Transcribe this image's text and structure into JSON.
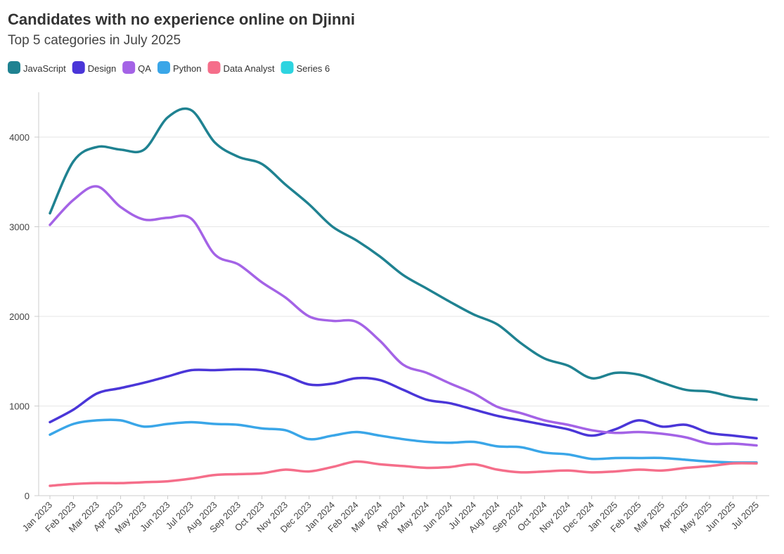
{
  "chart_data": {
    "type": "line",
    "title": "Candidates with no experience online on Djinni",
    "subtitle": "Top 5 categories in July 2025",
    "x": [
      "Jan 2023",
      "Feb 2023",
      "Mar 2023",
      "Apr 2023",
      "May 2023",
      "Jun 2023",
      "Jul 2023",
      "Aug 2023",
      "Sep 2023",
      "Oct 2023",
      "Nov 2023",
      "Dec 2023",
      "Jan 2024",
      "Feb 2024",
      "Mar 2024",
      "Apr 2024",
      "May 2024",
      "Jun 2024",
      "Jul 2024",
      "Aug 2024",
      "Sep 2024",
      "Oct 2024",
      "Nov 2024",
      "Dec 2024",
      "Jan 2025",
      "Feb 2025",
      "Mar 2025",
      "Apr 2025",
      "May 2025",
      "Jun 2025",
      "Jul 2025"
    ],
    "series": [
      {
        "name": "JavaScript",
        "color": "#1f8291",
        "values": [
          3150,
          3730,
          3890,
          3860,
          3860,
          4220,
          4300,
          3940,
          3780,
          3700,
          3470,
          3250,
          3000,
          2850,
          2670,
          2460,
          2310,
          2160,
          2020,
          1910,
          1700,
          1530,
          1450,
          1310,
          1370,
          1350,
          1260,
          1180,
          1160,
          1100,
          1070
        ]
      },
      {
        "name": "Design",
        "color": "#4a36d8",
        "values": [
          820,
          960,
          1140,
          1200,
          1260,
          1330,
          1400,
          1400,
          1410,
          1400,
          1340,
          1240,
          1250,
          1310,
          1290,
          1180,
          1070,
          1030,
          960,
          890,
          840,
          790,
          740,
          670,
          740,
          840,
          770,
          790,
          700,
          670,
          640
        ]
      },
      {
        "name": "QA",
        "color": "#a463e6",
        "values": [
          3020,
          3300,
          3450,
          3220,
          3080,
          3100,
          3090,
          2690,
          2580,
          2380,
          2210,
          2000,
          1950,
          1940,
          1730,
          1460,
          1370,
          1250,
          1140,
          990,
          920,
          840,
          790,
          730,
          700,
          710,
          690,
          650,
          580,
          580,
          560
        ]
      },
      {
        "name": "Python",
        "color": "#3aa6e8",
        "values": [
          680,
          800,
          840,
          840,
          770,
          800,
          820,
          800,
          790,
          750,
          730,
          630,
          670,
          710,
          670,
          630,
          600,
          590,
          600,
          550,
          540,
          480,
          460,
          410,
          420,
          420,
          420,
          400,
          380,
          370,
          370
        ]
      },
      {
        "name": "Data Analyst",
        "color": "#f56e8a",
        "values": [
          110,
          130,
          140,
          140,
          150,
          160,
          190,
          230,
          240,
          250,
          290,
          270,
          320,
          380,
          350,
          330,
          310,
          320,
          350,
          290,
          260,
          270,
          280,
          260,
          270,
          290,
          280,
          310,
          330,
          360,
          360
        ]
      },
      {
        "name": "Series 6",
        "color": "#2dd4e0",
        "values": [
          null,
          null,
          null,
          null,
          null,
          null,
          null,
          null,
          null,
          null,
          null,
          null,
          null,
          null,
          null,
          null,
          null,
          null,
          null,
          null,
          null,
          null,
          null,
          null,
          null,
          null,
          null,
          null,
          null,
          null,
          null
        ]
      }
    ],
    "ylim": [
      0,
      4500
    ],
    "yticks": [
      0,
      1000,
      2000,
      3000,
      4000
    ],
    "grid": true,
    "legend": "top-left"
  }
}
